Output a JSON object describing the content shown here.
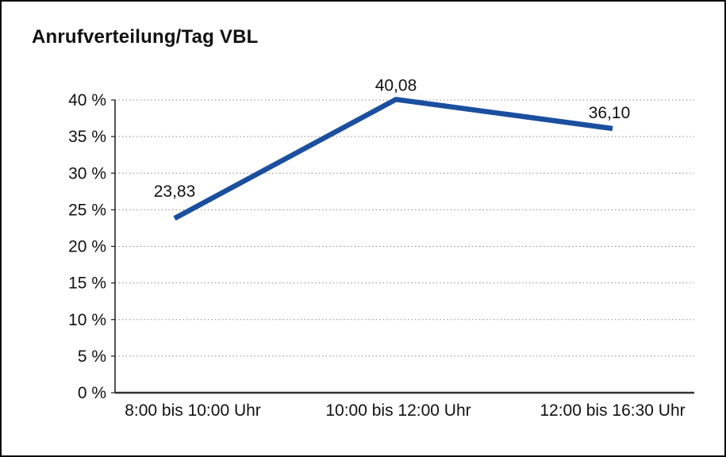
{
  "chart_data": {
    "type": "line",
    "title": "Anrufverteilung/Tag VBL",
    "categories": [
      "8:00 bis 10:00 Uhr",
      "10:00 bis 12:00 Uhr",
      "12:00 bis 16:30 Uhr"
    ],
    "values": [
      23.83,
      40.08,
      36.1
    ],
    "data_labels": [
      "23,83",
      "40,08",
      "36,10"
    ],
    "xlabel": "",
    "ylabel": "",
    "ylim": [
      0,
      40
    ],
    "ytick_values": [
      0,
      5,
      10,
      15,
      20,
      25,
      30,
      35,
      40
    ],
    "ytick_labels": [
      "0 %",
      "5 %",
      "10 %",
      "15 %",
      "20 %",
      "25 %",
      "30 %",
      "35 %",
      "40 %"
    ],
    "grid": "horizontal-dotted",
    "legend": "none",
    "line_color": "#1b4f9e",
    "text_color": "#111111"
  }
}
